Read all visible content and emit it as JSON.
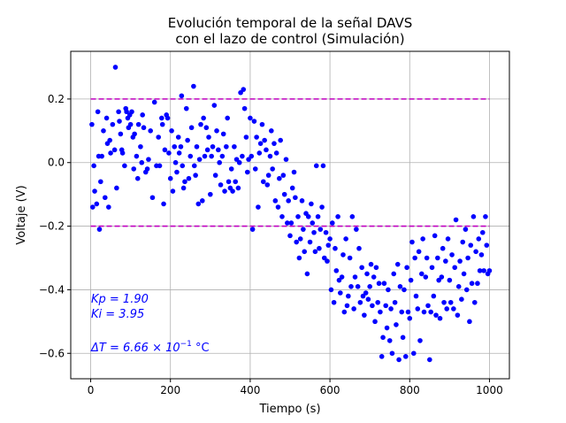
{
  "chart_data": {
    "type": "scatter",
    "title_line1": "Evolución temporal de la señal DAVS",
    "title_line2": "con el lazo de control (Simulación)",
    "xlabel": "Tiempo (s)",
    "ylabel": "Voltaje (V)",
    "xlim": [
      -50,
      1050
    ],
    "ylim": [
      -0.68,
      0.35
    ],
    "xticks": [
      0,
      200,
      400,
      600,
      800,
      1000
    ],
    "yticks": [
      -0.6,
      -0.4,
      -0.2,
      0.0,
      0.2
    ],
    "xtick_labels": [
      "0",
      "200",
      "400",
      "600",
      "800",
      "1000"
    ],
    "ytick_labels": [
      "−0.6",
      "−0.4",
      "−0.2",
      "0.0",
      "0.2"
    ],
    "grid": true,
    "point_color": "#0000ff",
    "threshold_color": "#c000c0",
    "thresholds": [
      {
        "y": 0.2,
        "x_start": 0,
        "x_end": 1000
      },
      {
        "y": -0.2,
        "x_start": 0,
        "x_end": 1000
      }
    ],
    "annotations": {
      "kp": "Kp = 1.90",
      "ki": "Ki = 3.95",
      "dt_prefix": "ΔT = 6.66 × 10",
      "dt_exp": "−1",
      "dt_unit": " °C"
    },
    "points": [
      [
        3,
        0.12
      ],
      [
        5,
        -0.14
      ],
      [
        8,
        -0.01
      ],
      [
        10,
        -0.09
      ],
      [
        15,
        -0.13
      ],
      [
        18,
        0.16
      ],
      [
        20,
        0.02
      ],
      [
        22,
        -0.21
      ],
      [
        25,
        -0.06
      ],
      [
        28,
        0.02
      ],
      [
        32,
        0.1
      ],
      [
        36,
        -0.11
      ],
      [
        40,
        0.14
      ],
      [
        42,
        0.06
      ],
      [
        45,
        -0.14
      ],
      [
        48,
        0.07
      ],
      [
        50,
        0.03
      ],
      [
        55,
        0.12
      ],
      [
        60,
        0.04
      ],
      [
        62,
        0.3
      ],
      [
        65,
        -0.08
      ],
      [
        70,
        0.16
      ],
      [
        72,
        0.13
      ],
      [
        75,
        0.09
      ],
      [
        78,
        0.04
      ],
      [
        80,
        0.03
      ],
      [
        85,
        -0.01
      ],
      [
        88,
        0.17
      ],
      [
        90,
        0.16
      ],
      [
        93,
        0.14
      ],
      [
        95,
        0.11
      ],
      [
        98,
        0.15
      ],
      [
        100,
        0.12
      ],
      [
        103,
        0.16
      ],
      [
        106,
        0.08
      ],
      [
        108,
        -0.02
      ],
      [
        110,
        0.09
      ],
      [
        115,
        0.02
      ],
      [
        118,
        -0.05
      ],
      [
        120,
        0.12
      ],
      [
        125,
        0.05
      ],
      [
        128,
        0.0
      ],
      [
        130,
        0.15
      ],
      [
        133,
        0.11
      ],
      [
        138,
        -0.03
      ],
      [
        142,
        -0.02
      ],
      [
        145,
        0.01
      ],
      [
        150,
        0.1
      ],
      [
        155,
        -0.11
      ],
      [
        160,
        0.19
      ],
      [
        165,
        -0.01
      ],
      [
        170,
        0.08
      ],
      [
        173,
        -0.01
      ],
      [
        178,
        0.14
      ],
      [
        180,
        0.12
      ],
      [
        183,
        -0.13
      ],
      [
        186,
        0.04
      ],
      [
        190,
        0.15
      ],
      [
        193,
        0.14
      ],
      [
        196,
        0.03
      ],
      [
        200,
        -0.05
      ],
      [
        203,
        0.1
      ],
      [
        206,
        -0.09
      ],
      [
        210,
        0.05
      ],
      [
        213,
        0.0
      ],
      [
        216,
        -0.03
      ],
      [
        220,
        0.08
      ],
      [
        222,
        0.03
      ],
      [
        226,
        0.05
      ],
      [
        228,
        0.21
      ],
      [
        230,
        -0.01
      ],
      [
        233,
        -0.08
      ],
      [
        236,
        -0.06
      ],
      [
        240,
        0.17
      ],
      [
        243,
        0.07
      ],
      [
        246,
        -0.05
      ],
      [
        250,
        0.02
      ],
      [
        253,
        0.11
      ],
      [
        258,
        0.24
      ],
      [
        260,
        -0.01
      ],
      [
        263,
        -0.04
      ],
      [
        266,
        0.05
      ],
      [
        270,
        -0.13
      ],
      [
        273,
        0.01
      ],
      [
        276,
        0.12
      ],
      [
        280,
        -0.12
      ],
      [
        283,
        0.14
      ],
      [
        286,
        0.02
      ],
      [
        290,
        0.11
      ],
      [
        293,
        0.04
      ],
      [
        296,
        0.08
      ],
      [
        300,
        -0.1
      ],
      [
        303,
        0.02
      ],
      [
        306,
        0.05
      ],
      [
        310,
        0.18
      ],
      [
        313,
        -0.04
      ],
      [
        316,
        0.1
      ],
      [
        320,
        0.04
      ],
      [
        323,
        0.0
      ],
      [
        326,
        -0.07
      ],
      [
        330,
        0.02
      ],
      [
        333,
        0.09
      ],
      [
        336,
        -0.09
      ],
      [
        340,
        0.05
      ],
      [
        343,
        0.14
      ],
      [
        346,
        -0.06
      ],
      [
        350,
        -0.08
      ],
      [
        353,
        -0.02
      ],
      [
        356,
        -0.09
      ],
      [
        360,
        0.05
      ],
      [
        363,
        -0.06
      ],
      [
        366,
        0.01
      ],
      [
        370,
        -0.08
      ],
      [
        373,
        0.0
      ],
      [
        376,
        0.22
      ],
      [
        380,
        0.02
      ],
      [
        383,
        0.23
      ],
      [
        386,
        0.17
      ],
      [
        390,
        0.08
      ],
      [
        393,
        -0.03
      ],
      [
        396,
        0.01
      ],
      [
        400,
        0.14
      ],
      [
        403,
        0.02
      ],
      [
        406,
        -0.21
      ],
      [
        410,
        0.13
      ],
      [
        413,
        -0.02
      ],
      [
        416,
        0.08
      ],
      [
        420,
        -0.14
      ],
      [
        423,
        0.03
      ],
      [
        426,
        0.06
      ],
      [
        430,
        0.12
      ],
      [
        433,
        -0.06
      ],
      [
        436,
        0.07
      ],
      [
        440,
        0.04
      ],
      [
        443,
        -0.07
      ],
      [
        446,
        -0.04
      ],
      [
        450,
        0.02
      ],
      [
        453,
        0.1
      ],
      [
        456,
        -0.02
      ],
      [
        460,
        0.06
      ],
      [
        463,
        -0.12
      ],
      [
        466,
        0.03
      ],
      [
        470,
        -0.14
      ],
      [
        473,
        -0.05
      ],
      [
        476,
        0.07
      ],
      [
        480,
        -0.17
      ],
      [
        483,
        -0.04
      ],
      [
        486,
        -0.1
      ],
      [
        490,
        0.01
      ],
      [
        493,
        -0.19
      ],
      [
        496,
        -0.12
      ],
      [
        500,
        -0.23
      ],
      [
        503,
        -0.19
      ],
      [
        506,
        -0.08
      ],
      [
        510,
        -0.03
      ],
      [
        513,
        -0.11
      ],
      [
        516,
        -0.25
      ],
      [
        520,
        -0.17
      ],
      [
        523,
        -0.3
      ],
      [
        526,
        -0.24
      ],
      [
        530,
        -0.12
      ],
      [
        533,
        -0.21
      ],
      [
        536,
        -0.28
      ],
      [
        540,
        -0.16
      ],
      [
        543,
        -0.35
      ],
      [
        546,
        -0.17
      ],
      [
        550,
        -0.25
      ],
      [
        553,
        -0.13
      ],
      [
        556,
        -0.19
      ],
      [
        560,
        -0.22
      ],
      [
        563,
        -0.28
      ],
      [
        566,
        -0.01
      ],
      [
        570,
        -0.17
      ],
      [
        573,
        -0.27
      ],
      [
        576,
        -0.21
      ],
      [
        580,
        -0.14
      ],
      [
        583,
        -0.01
      ],
      [
        586,
        -0.3
      ],
      [
        590,
        -0.22
      ],
      [
        593,
        -0.31
      ],
      [
        596,
        -0.26
      ],
      [
        600,
        -0.24
      ],
      [
        603,
        -0.4
      ],
      [
        606,
        -0.19
      ],
      [
        610,
        -0.44
      ],
      [
        613,
        -0.27
      ],
      [
        616,
        -0.34
      ],
      [
        620,
        -0.17
      ],
      [
        623,
        -0.37
      ],
      [
        626,
        -0.41
      ],
      [
        630,
        -0.36
      ],
      [
        633,
        -0.29
      ],
      [
        636,
        -0.47
      ],
      [
        640,
        -0.24
      ],
      [
        643,
        -0.45
      ],
      [
        646,
        -0.42
      ],
      [
        650,
        -0.3
      ],
      [
        653,
        -0.39
      ],
      [
        656,
        -0.17
      ],
      [
        660,
        -0.46
      ],
      [
        663,
        -0.36
      ],
      [
        666,
        -0.21
      ],
      [
        670,
        -0.39
      ],
      [
        673,
        -0.27
      ],
      [
        676,
        -0.44
      ],
      [
        680,
        -0.33
      ],
      [
        683,
        -0.42
      ],
      [
        686,
        -0.48
      ],
      [
        690,
        -0.41
      ],
      [
        693,
        -0.35
      ],
      [
        696,
        -0.43
      ],
      [
        700,
        -0.39
      ],
      [
        703,
        -0.32
      ],
      [
        706,
        -0.45
      ],
      [
        710,
        -0.36
      ],
      [
        713,
        -0.5
      ],
      [
        716,
        -0.33
      ],
      [
        720,
        -0.44
      ],
      [
        723,
        -0.38
      ],
      [
        726,
        -0.47
      ],
      [
        730,
        -0.61
      ],
      [
        733,
        -0.55
      ],
      [
        736,
        -0.38
      ],
      [
        740,
        -0.45
      ],
      [
        743,
        -0.52
      ],
      [
        746,
        -0.4
      ],
      [
        750,
        -0.56
      ],
      [
        753,
        -0.46
      ],
      [
        756,
        -0.6
      ],
      [
        760,
        -0.35
      ],
      [
        763,
        -0.44
      ],
      [
        766,
        -0.51
      ],
      [
        770,
        -0.32
      ],
      [
        773,
        -0.62
      ],
      [
        776,
        -0.39
      ],
      [
        780,
        -0.47
      ],
      [
        783,
        -0.55
      ],
      [
        786,
        -0.4
      ],
      [
        790,
        -0.61
      ],
      [
        793,
        -0.33
      ],
      [
        796,
        -0.47
      ],
      [
        800,
        -0.49
      ],
      [
        803,
        -0.37
      ],
      [
        806,
        -0.25
      ],
      [
        810,
        -0.6
      ],
      [
        813,
        -0.3
      ],
      [
        816,
        -0.42
      ],
      [
        820,
        -0.46
      ],
      [
        823,
        -0.28
      ],
      [
        826,
        -0.56
      ],
      [
        830,
        -0.35
      ],
      [
        833,
        -0.24
      ],
      [
        836,
        -0.47
      ],
      [
        840,
        -0.36
      ],
      [
        843,
        -0.3
      ],
      [
        846,
        -0.45
      ],
      [
        850,
        -0.62
      ],
      [
        853,
        -0.47
      ],
      [
        856,
        -0.33
      ],
      [
        860,
        -0.42
      ],
      [
        863,
        -0.23
      ],
      [
        866,
        -0.48
      ],
      [
        870,
        -0.3
      ],
      [
        873,
        -0.37
      ],
      [
        876,
        -0.49
      ],
      [
        880,
        -0.36
      ],
      [
        883,
        -0.27
      ],
      [
        886,
        -0.44
      ],
      [
        890,
        -0.31
      ],
      [
        893,
        -0.46
      ],
      [
        896,
        -0.24
      ],
      [
        900,
        -0.37
      ],
      [
        903,
        -0.44
      ],
      [
        906,
        -0.29
      ],
      [
        910,
        -0.46
      ],
      [
        913,
        -0.33
      ],
      [
        916,
        -0.18
      ],
      [
        920,
        -0.48
      ],
      [
        923,
        -0.39
      ],
      [
        926,
        -0.31
      ],
      [
        930,
        -0.43
      ],
      [
        933,
        -0.25
      ],
      [
        936,
        -0.35
      ],
      [
        940,
        -0.21
      ],
      [
        943,
        -0.4
      ],
      [
        946,
        -0.3
      ],
      [
        950,
        -0.5
      ],
      [
        953,
        -0.26
      ],
      [
        956,
        -0.38
      ],
      [
        960,
        -0.17
      ],
      [
        963,
        -0.44
      ],
      [
        966,
        -0.28
      ],
      [
        970,
        -0.38
      ],
      [
        973,
        -0.24
      ],
      [
        976,
        -0.34
      ],
      [
        980,
        -0.29
      ],
      [
        983,
        -0.22
      ],
      [
        986,
        -0.34
      ],
      [
        990,
        -0.17
      ],
      [
        993,
        -0.26
      ],
      [
        996,
        -0.35
      ],
      [
        1000,
        -0.34
      ]
    ]
  }
}
